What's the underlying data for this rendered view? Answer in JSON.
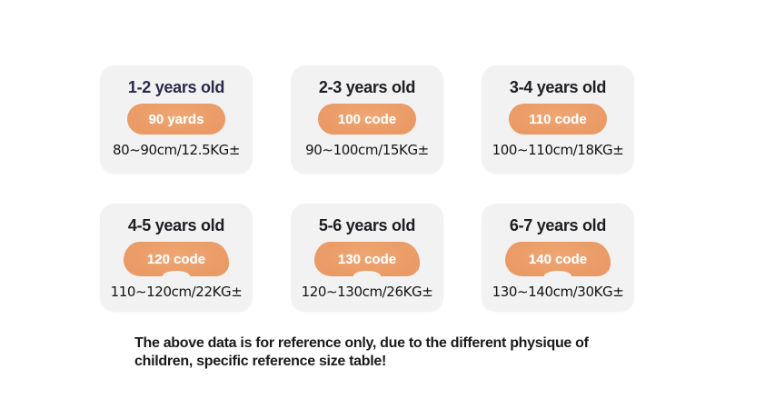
{
  "cards": [
    {
      "age": "1-2 years old",
      "size": "90 yards",
      "range": "80~90cm/12.5KG±"
    },
    {
      "age": "2-3 years old",
      "size": "100 code",
      "range": "90∼100cm/15KG±"
    },
    {
      "age": "3-4 years old",
      "size": "110 code",
      "range": "100∼110cm/18KG±"
    },
    {
      "age": "4-5 years old",
      "size": "120 code",
      "range": "110∼120cm/22KG±"
    },
    {
      "age": "5-6 years old",
      "size": "130 code",
      "range": "120∼130cm/26KG±"
    },
    {
      "age": "6-7 years old",
      "size": "140 code",
      "range": "130∼140cm/30KG±"
    }
  ],
  "footer": {
    "disclaimer": "The above data is for reference only, due to the different physique of children, specific reference size table!"
  },
  "theme": {
    "badge_color": "#eb9c68",
    "badge_text_color": "#ffffff",
    "card_background": "#f2f2f3",
    "first_title_color": "#2b2a4c",
    "title_color": "#1e1e22",
    "body_text_color": "#141414",
    "page_background": "#ffffff"
  }
}
